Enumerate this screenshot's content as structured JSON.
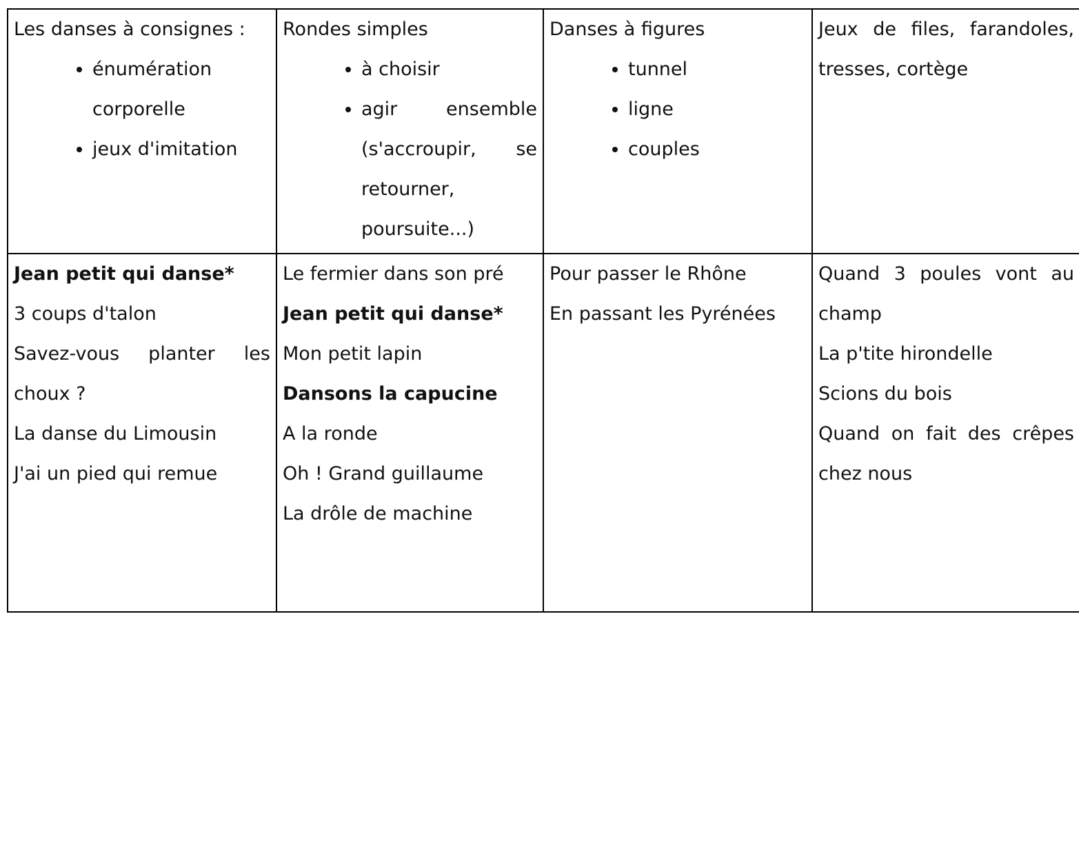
{
  "table": {
    "rows": [
      [
        {
          "text": "Les danses à consignes :",
          "items": [
            "énumération corporelle",
            "jeux d'imitation"
          ]
        },
        {
          "text": "Rondes simples",
          "items": [
            "à choisir",
            "agir ensemble (s'accroupir, se retourner, poursuite...)"
          ]
        },
        {
          "text": "Danses à figures",
          "items": [
            "tunnel",
            "ligne",
            "couples"
          ]
        },
        {
          "text": "Jeux de files, farandoles, tresses, cortège"
        }
      ],
      [
        {
          "songs": [
            {
              "text": "Jean petit qui danse*",
              "bold": true
            },
            {
              "text": "3 coups d'talon"
            },
            {
              "text": "Savez-vous planter les choux ?"
            },
            {
              "text": "La danse du Limousin"
            },
            {
              "text": "J'ai un pied qui remue"
            }
          ]
        },
        {
          "songs": [
            {
              "text": "Le fermier dans son pré"
            },
            {
              "text": "Jean petit qui danse*",
              "bold": true
            },
            {
              "text": "Mon petit lapin"
            },
            {
              "text": "Dansons la capucine",
              "bold": true
            },
            {
              "text": "A la ronde"
            },
            {
              "text": "Oh ! Grand guillaume"
            },
            {
              "text": "La drôle de machine"
            }
          ]
        },
        {
          "songs": [
            {
              "text": "Pour passer le Rhône"
            },
            {
              "text": "En passant les Pyrénées"
            }
          ]
        },
        {
          "songs": [
            {
              "text": "Quand 3 poules vont au champ"
            },
            {
              "text": "La p'tite hirondelle"
            },
            {
              "text": "Scions du bois"
            },
            {
              "text": "Quand on fait des crêpes chez nous"
            }
          ]
        }
      ]
    ]
  }
}
